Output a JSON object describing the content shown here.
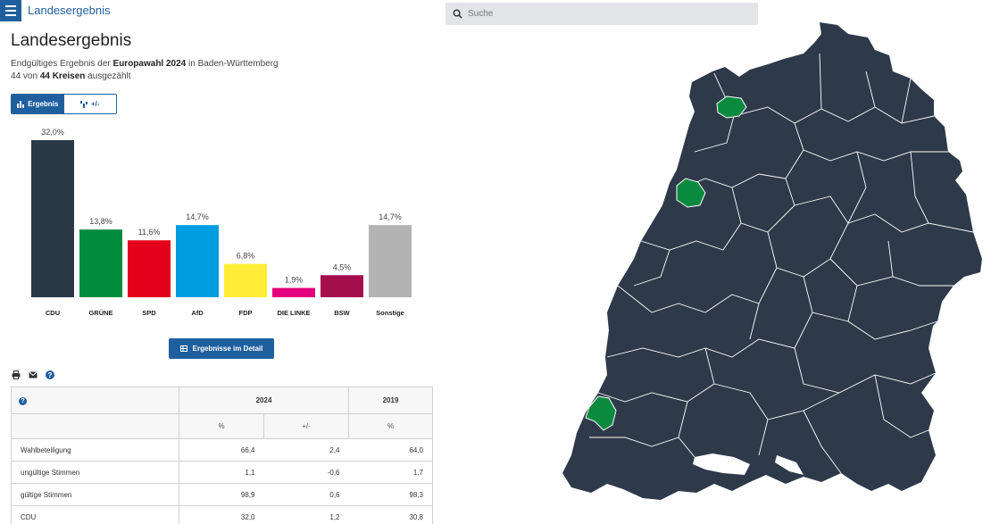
{
  "header": {
    "title": "Landesergebnis"
  },
  "search": {
    "placeholder": "Suche"
  },
  "page": {
    "title": "Landesergebnis",
    "subtitle_pre": "Endgültiges Ergebnis der ",
    "subtitle_bold": "Europawahl 2024",
    "subtitle_post": " in Baden-Württemberg",
    "counted_num": "44",
    "counted_mid": " von ",
    "counted_total": "44 Kreisen",
    "counted_post": " ausgezählt"
  },
  "toggle": {
    "result_label": "Ergebnis",
    "diff_label": "+/-"
  },
  "detail_button": {
    "label": "Ergebnisse im Detail"
  },
  "chart_data": {
    "type": "bar",
    "categories": [
      "CDU",
      "GRÜNE",
      "SPD",
      "AfD",
      "FDP",
      "DIE LINKE",
      "BSW",
      "Sonstige"
    ],
    "values": [
      32.0,
      13.8,
      11.6,
      14.7,
      6.8,
      1.9,
      4.5,
      14.7
    ],
    "value_labels": [
      "32,0%",
      "13,8%",
      "11,6%",
      "14,7%",
      "6,8%",
      "1,9%",
      "4,5%",
      "14,7%"
    ],
    "colors": [
      "#2b3846",
      "#008c3c",
      "#e2001a",
      "#009ee0",
      "#ffed37",
      "#e5007d",
      "#a50e4d",
      "#b3b3b3"
    ],
    "ylim": [
      0,
      32
    ]
  },
  "table": {
    "year_current": "2024",
    "year_previous": "2019",
    "col_pct": "%",
    "col_diff": "+/-",
    "col_pct_prev": "%",
    "rows": [
      {
        "label": "Wahlbeteiligung",
        "pct": "66,4",
        "diff": "2,4",
        "prev": "64,0"
      },
      {
        "label": "ungültige Stimmen",
        "pct": "1,1",
        "diff": "-0,6",
        "prev": "1,7"
      },
      {
        "label": "gültige Stimmen",
        "pct": "98,9",
        "diff": "0,6",
        "prev": "98,3"
      },
      {
        "label": "CDU",
        "pct": "32,0",
        "diff": "1,2",
        "prev": "30,8"
      }
    ]
  },
  "map": {
    "base_color": "#2e3a49",
    "highlight_color": "#0a8a3e",
    "border_color": "#ffffff"
  },
  "icons": [
    "menu-icon",
    "search-icon",
    "bar-chart-icon",
    "diff-icon",
    "table-icon",
    "print-icon",
    "mail-icon",
    "help-icon"
  ]
}
